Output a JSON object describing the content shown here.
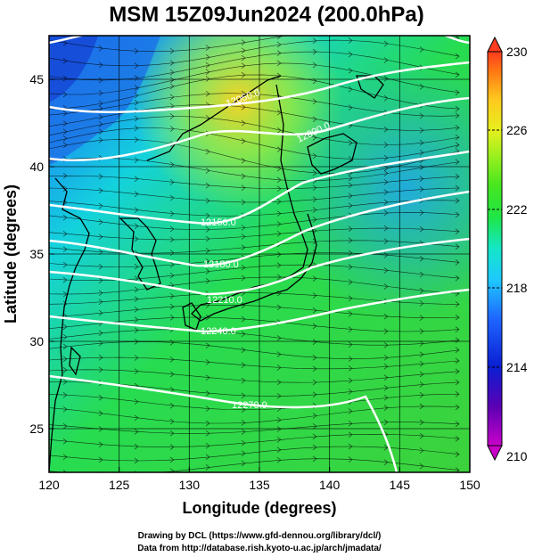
{
  "title": "MSM 15Z09Jun2024 (200.0hPa)",
  "xlabel": "Longitude (degrees)",
  "ylabel": "Latitude  (degrees)",
  "x_ticks": [
    "120",
    "125",
    "130",
    "135",
    "140",
    "145",
    "150"
  ],
  "y_ticks": [
    "25",
    "30",
    "35",
    "40",
    "45"
  ],
  "colorbar": {
    "labels": [
      "230",
      "226",
      "222",
      "218",
      "214",
      "210"
    ],
    "min": 210,
    "max": 230,
    "colors": [
      "#c800c8",
      "#5a00b4",
      "#0a1ed2",
      "#1e64ff",
      "#1ec8ff",
      "#14e6c8",
      "#1ee646",
      "#46e61e",
      "#a0f01e",
      "#e6f01e",
      "#ffc81e",
      "#ff7814",
      "#ff3c1e"
    ]
  },
  "contours": {
    "labels": [
      "12060.0",
      "12090.0",
      "12120.0",
      "12150.0",
      "12180.0",
      "12210.0",
      "12240.0",
      "12270.0"
    ],
    "color": "#ffffff"
  },
  "credits": [
    "Drawing by DCL (https://www.gfd-dennou.org/library/dcl/)",
    "Data from http://database.rish.kyoto-u.ac.jp/arch/jmadata/"
  ],
  "chart_data": {
    "type": "heatmap",
    "title": "MSM 15Z09Jun2024 (200.0hPa)",
    "xlabel": "Longitude (degrees)",
    "ylabel": "Latitude  (degrees)",
    "xlim": [
      120,
      150
    ],
    "ylim": [
      22.5,
      47.5
    ],
    "x_ticks": [
      120,
      125,
      130,
      135,
      140,
      145,
      150
    ],
    "y_ticks": [
      25,
      30,
      35,
      40,
      45
    ],
    "colorbar_range": [
      210,
      230
    ],
    "colorbar_ticks": [
      210,
      214,
      218,
      222,
      226,
      230
    ],
    "grid": true,
    "overlays": [
      "temperature shading",
      "geopotential height contours",
      "wind streamlines",
      "coastlines"
    ]
  }
}
